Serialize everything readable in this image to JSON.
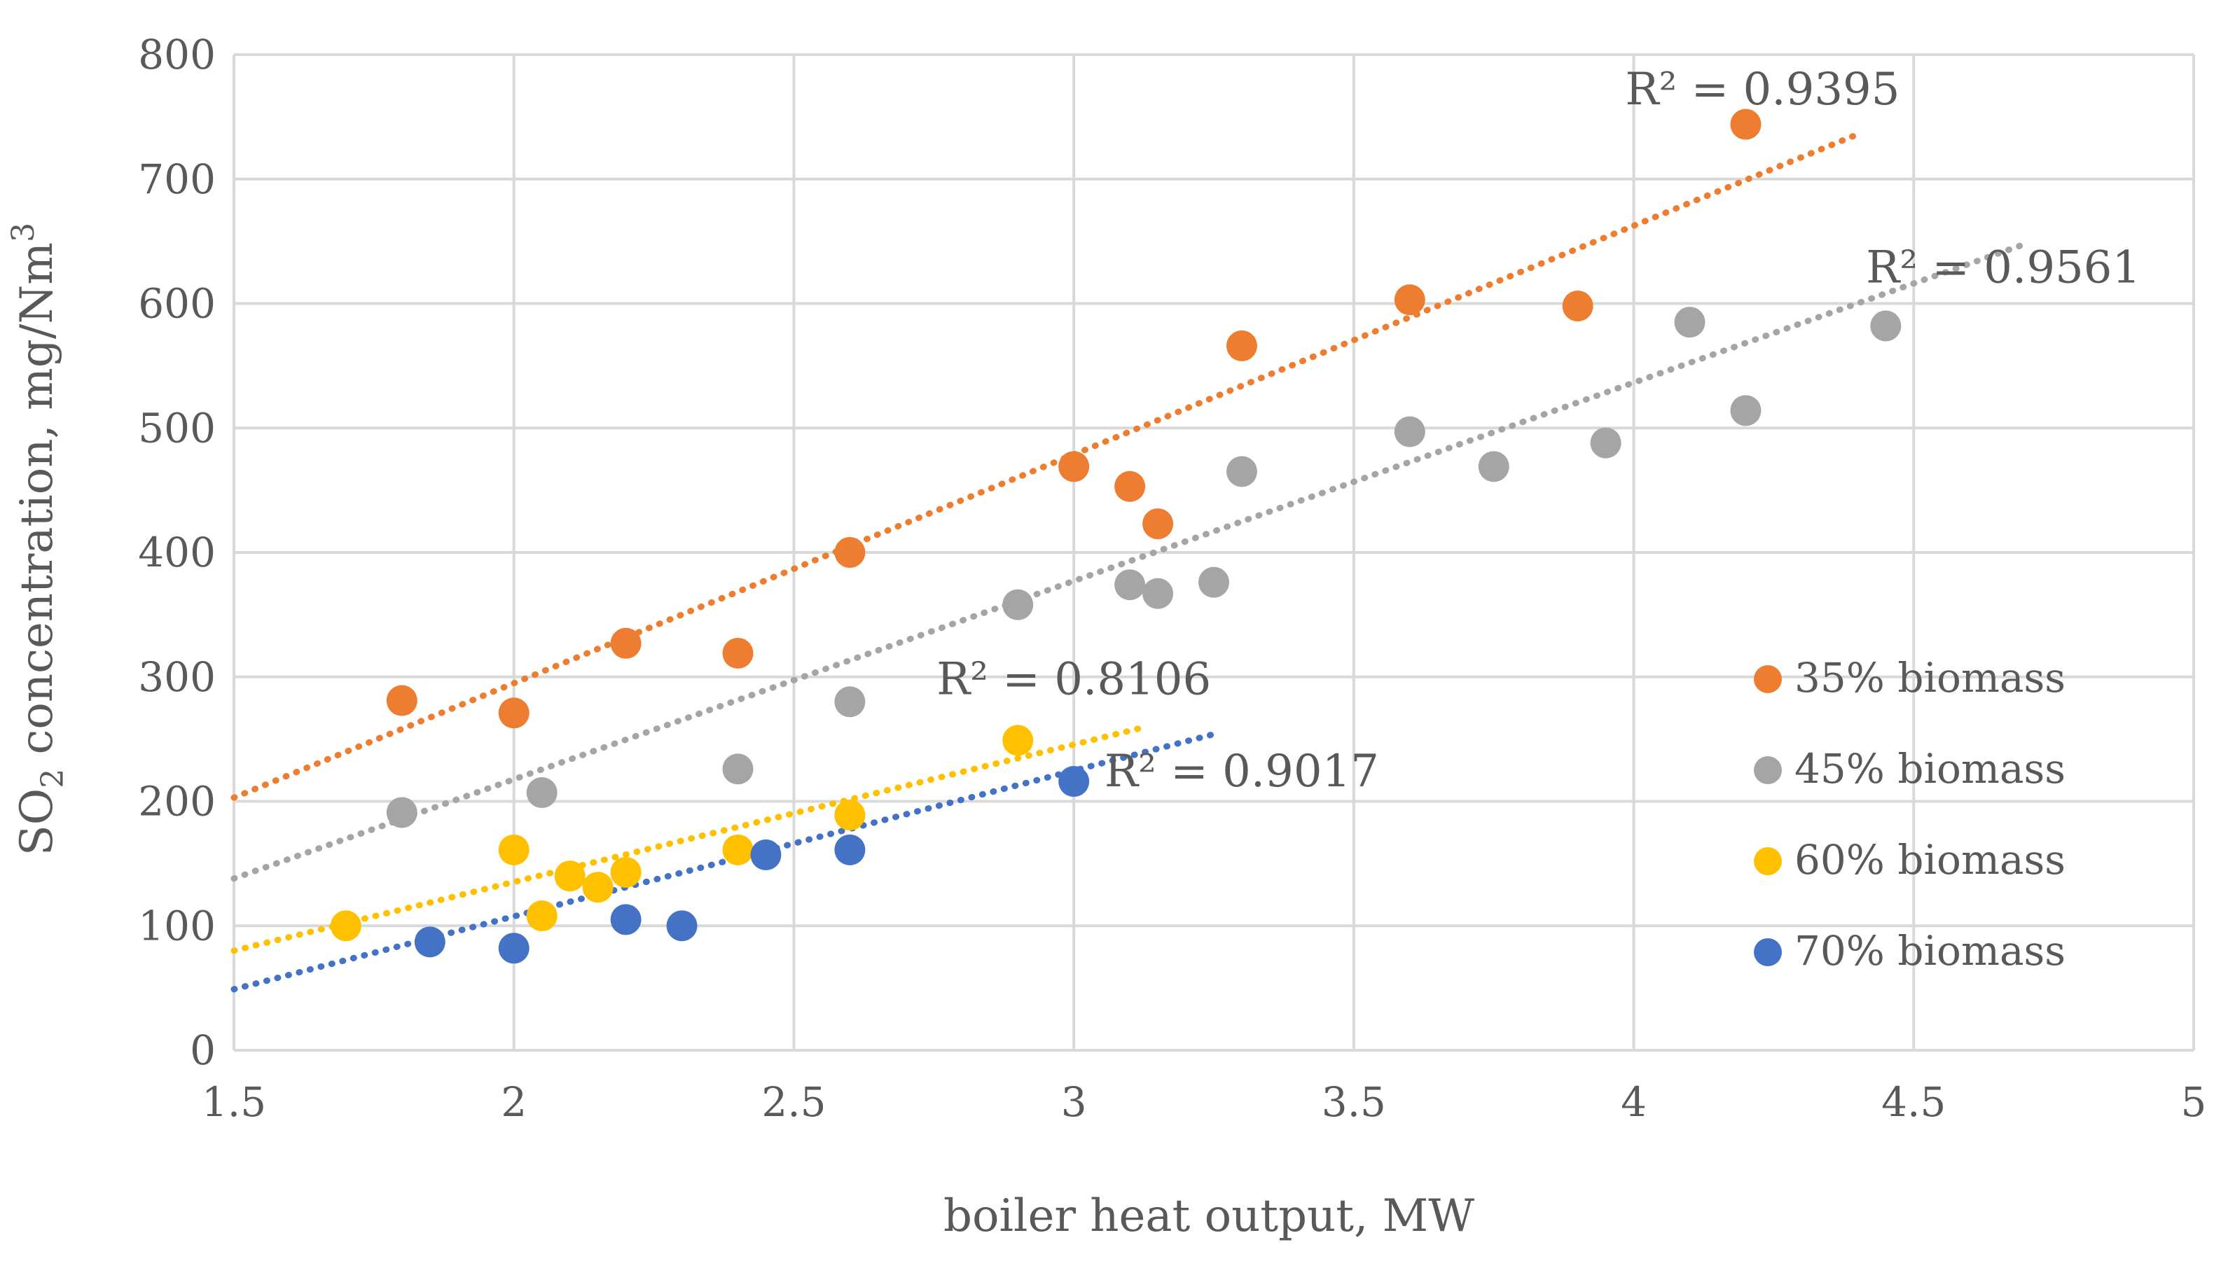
{
  "chart_data": {
    "type": "scatter",
    "title": "",
    "xlabel": "boiler heat output, MW",
    "ylabel": {
      "prefix": "SO",
      "subscript": "2",
      "middle": " concentration, mg/Nm",
      "superscript": "3"
    },
    "xlim": [
      1.5,
      5
    ],
    "ylim": [
      0,
      800
    ],
    "x_ticks": [
      1.5,
      2,
      2.5,
      3,
      3.5,
      4,
      4.5,
      5
    ],
    "x_tick_labels": [
      "1.5",
      "2",
      "2.5",
      "3",
      "3.5",
      "4",
      "4.5",
      "5"
    ],
    "y_ticks": [
      0,
      100,
      200,
      300,
      400,
      500,
      600,
      700,
      800
    ],
    "y_tick_labels": [
      "0",
      "100",
      "200",
      "300",
      "400",
      "500",
      "600",
      "700",
      "800"
    ],
    "grid": true,
    "legend_position": "right",
    "series": [
      {
        "name": "35% biomass",
        "color": "#ED7D31",
        "points": [
          [
            1.8,
            281
          ],
          [
            2.0,
            271
          ],
          [
            2.2,
            327
          ],
          [
            2.4,
            319
          ],
          [
            2.6,
            400
          ],
          [
            3.0,
            469
          ],
          [
            3.1,
            453
          ],
          [
            3.15,
            423
          ],
          [
            3.3,
            566
          ],
          [
            3.6,
            603
          ],
          [
            3.9,
            598
          ],
          [
            4.2,
            744
          ]
        ],
        "trend": {
          "x": [
            1.5,
            4.4
          ],
          "y": [
            203,
            736
          ]
        },
        "r2_label": "R² = 0.9395",
        "r2_anchor": {
          "x": 4.23,
          "y": 760
        }
      },
      {
        "name": "45% biomass",
        "color": "#A5A5A5",
        "points": [
          [
            1.8,
            191
          ],
          [
            2.05,
            207
          ],
          [
            2.4,
            226
          ],
          [
            2.6,
            280
          ],
          [
            2.9,
            358
          ],
          [
            3.1,
            374
          ],
          [
            3.15,
            367
          ],
          [
            3.25,
            376
          ],
          [
            3.3,
            465
          ],
          [
            3.6,
            497
          ],
          [
            3.75,
            469
          ],
          [
            3.95,
            488
          ],
          [
            4.1,
            585
          ],
          [
            4.2,
            514
          ],
          [
            4.45,
            582
          ]
        ],
        "trend": {
          "x": [
            1.5,
            4.7
          ],
          "y": [
            138,
            648
          ]
        },
        "r2_label": "R² = 0.9561",
        "r2_anchor": {
          "x": 4.66,
          "y": 617
        }
      },
      {
        "name": "60% biomass",
        "color": "#FFC000",
        "points": [
          [
            1.7,
            100
          ],
          [
            2.0,
            161
          ],
          [
            2.05,
            108
          ],
          [
            2.1,
            140
          ],
          [
            2.15,
            131
          ],
          [
            2.2,
            143
          ],
          [
            2.4,
            161
          ],
          [
            2.6,
            189
          ],
          [
            2.9,
            249
          ]
        ],
        "trend": {
          "x": [
            1.5,
            3.13
          ],
          "y": [
            80,
            260
          ]
        },
        "r2_label": "R² = 0.8106",
        "r2_anchor": {
          "x": 3.0,
          "y": 286
        }
      },
      {
        "name": "70% biomass",
        "color": "#4472C4",
        "points": [
          [
            1.85,
            87
          ],
          [
            2.0,
            82
          ],
          [
            2.2,
            105
          ],
          [
            2.3,
            100
          ],
          [
            2.45,
            157
          ],
          [
            2.6,
            161
          ],
          [
            3.0,
            216
          ]
        ],
        "trend": {
          "x": [
            1.5,
            3.25
          ],
          "y": [
            49,
            254
          ]
        },
        "r2_label": "R² = 0.9017",
        "r2_anchor": {
          "x": 3.3,
          "y": 212
        }
      }
    ]
  }
}
